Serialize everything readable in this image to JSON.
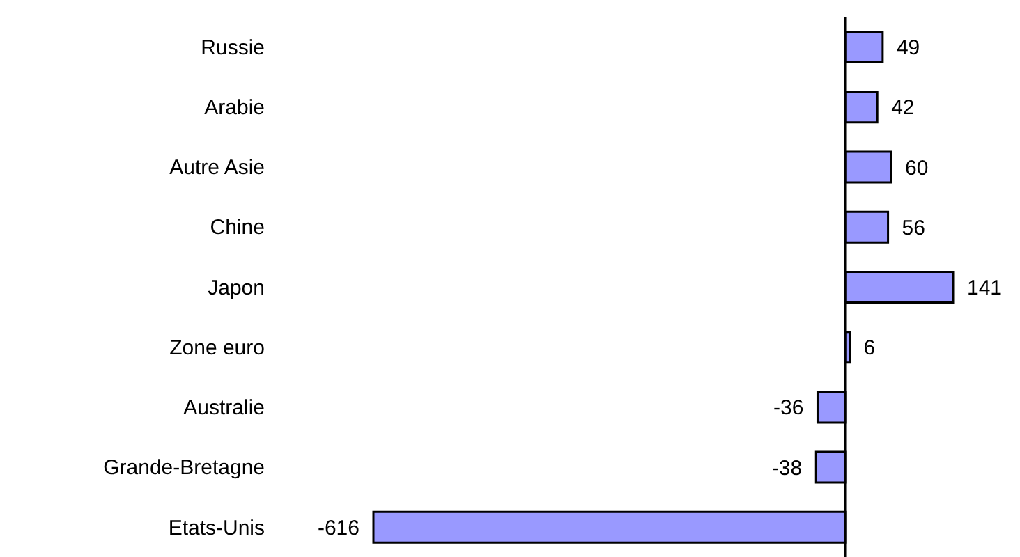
{
  "chart_data": {
    "type": "bar",
    "orientation": "horizontal",
    "categories": [
      "Russie",
      "Arabie",
      "Autre Asie",
      "Chine",
      "Japon",
      "Zone euro",
      "Australie",
      "Grande-Bretagne",
      "Etats-Unis"
    ],
    "values": [
      49,
      42,
      60,
      56,
      141,
      6,
      -36,
      -38,
      -616
    ],
    "color": "#9999ff",
    "data_labels": true
  }
}
